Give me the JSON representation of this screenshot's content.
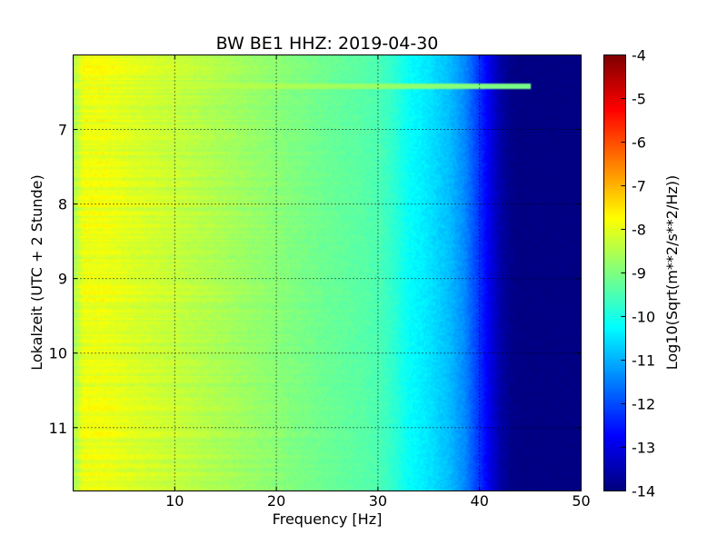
{
  "chart_data": {
    "type": "heatmap",
    "title": "BW BE1 HHZ: 2019-04-30",
    "xlabel": "Frequency [Hz]",
    "ylabel": "Lokalzeit (UTC + 2 Stunde)",
    "colorbar_label": "Log10(Sqrt(m**2/s**2/Hz))",
    "colormap": "jet",
    "xlim": [
      0,
      50
    ],
    "ylim": [
      6.0,
      11.85
    ],
    "y_inverted": true,
    "x_ticks": [
      "10",
      "20",
      "30",
      "40",
      "50"
    ],
    "y_ticks": [
      "7",
      "8",
      "9",
      "10",
      "11"
    ],
    "colorbar_range": [
      -14,
      -4
    ],
    "colorbar_ticks": [
      "-4",
      "-5",
      "-6",
      "-7",
      "-8",
      "-9",
      "-10",
      "-11",
      "-12",
      "-13",
      "-14"
    ],
    "grid": true,
    "profile": {
      "frequency_hz": [
        0,
        1,
        3,
        6,
        10,
        15,
        20,
        25,
        28,
        30,
        31.5,
        33,
        35,
        37,
        38.5,
        40,
        41,
        42,
        43,
        44,
        46,
        50
      ],
      "log10_amplitude": [
        -8.6,
        -7.9,
        -7.9,
        -8.1,
        -8.3,
        -8.6,
        -8.9,
        -9.2,
        -9.35,
        -9.5,
        -9.8,
        -10.2,
        -10.5,
        -10.9,
        -11.4,
        -12.3,
        -13.0,
        -13.6,
        -13.9,
        -14.0,
        -14.0,
        -14.0
      ]
    },
    "events": [
      {
        "time": 6.42,
        "freq_max_hz": 45,
        "log10_amplitude": -8.1
      }
    ]
  }
}
